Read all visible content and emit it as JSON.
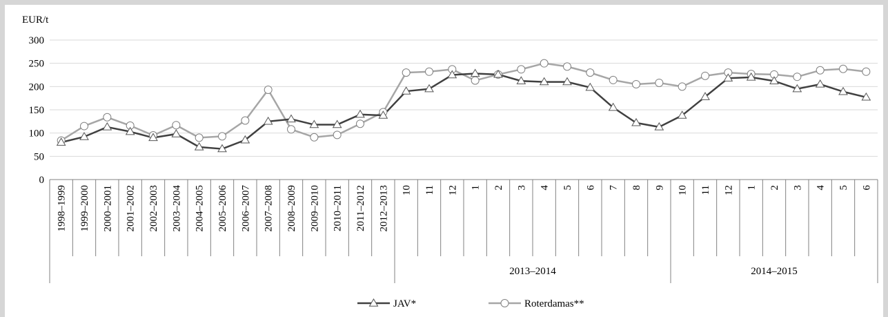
{
  "chart_data": {
    "type": "line",
    "ylabel": "EUR/t",
    "ylim": [
      0,
      300
    ],
    "yticks": [
      0,
      50,
      100,
      150,
      200,
      250,
      300
    ],
    "grid": true,
    "legend_position": "bottom",
    "categories": [
      "1998–1999",
      "1999–2000",
      "2000–2001",
      "2001–2002",
      "2002–2003",
      "2003–2004",
      "2004–2005",
      "2005–2006",
      "2006–2007",
      "2007–2008",
      "2008–2009",
      "2009–2010",
      "2010–2011",
      "2011–2012",
      "2012–2013",
      "10",
      "11",
      "12",
      "1",
      "2",
      "3",
      "4",
      "5",
      "6",
      "7",
      "8",
      "9",
      "10",
      "11",
      "12",
      "1",
      "2",
      "3",
      "4",
      "5",
      "6"
    ],
    "groups": [
      {
        "label": "2013–2014",
        "start": 15,
        "end": 26
      },
      {
        "label": "2014–2015",
        "start": 27,
        "end": 35
      }
    ],
    "series": [
      {
        "name": "JAV*",
        "marker": "triangle",
        "color": "#404040",
        "values": [
          80,
          92,
          113,
          103,
          90,
          98,
          70,
          66,
          85,
          125,
          130,
          118,
          118,
          140,
          138,
          190,
          195,
          225,
          228,
          226,
          212,
          210,
          210,
          198,
          155,
          122,
          113,
          138,
          178,
          218,
          220,
          212,
          195,
          205,
          189,
          177
        ]
      },
      {
        "name": "Roterdamas**",
        "marker": "circle",
        "color": "#a6a6a6",
        "values": [
          84,
          115,
          134,
          116,
          95,
          117,
          90,
          93,
          127,
          193,
          108,
          91,
          96,
          120,
          145,
          230,
          232,
          237,
          213,
          226,
          237,
          250,
          243,
          230,
          214,
          205,
          208,
          200,
          223,
          230,
          227,
          226,
          221,
          235,
          238,
          232
        ]
      }
    ]
  }
}
